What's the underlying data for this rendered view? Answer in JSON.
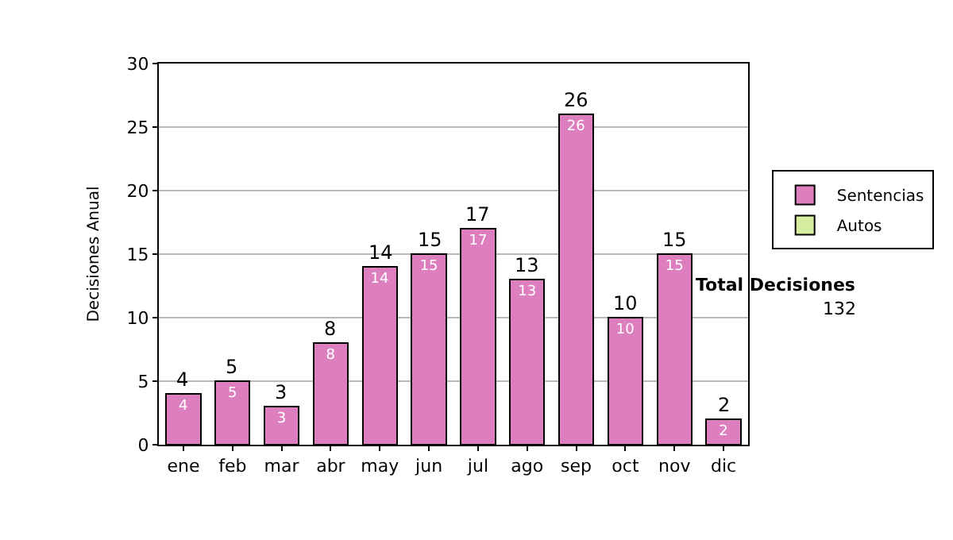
{
  "chart_data": {
    "type": "bar",
    "ylabel": "Decisiones Anual",
    "categories": [
      "ene",
      "feb",
      "mar",
      "abr",
      "may",
      "jun",
      "jul",
      "ago",
      "sep",
      "oct",
      "nov",
      "dic"
    ],
    "stacked": true,
    "series": [
      {
        "name": "Sentencias",
        "color": "#dd7fbf",
        "values": [
          4,
          5,
          3,
          8,
          14,
          15,
          17,
          13,
          26,
          10,
          15,
          2
        ],
        "value_labels": [
          "4",
          "5",
          "3",
          "8",
          "14",
          "15",
          "17",
          "13",
          "26",
          "10",
          "15",
          "2"
        ]
      },
      {
        "name": "Autos",
        "color": "#d6ec9f",
        "values": [
          null,
          null,
          null,
          null,
          null,
          null,
          null,
          null,
          null,
          null,
          null,
          null
        ]
      }
    ],
    "totals": [
      "4",
      "5",
      "3",
      "8",
      "14",
      "15",
      "17",
      "13",
      "26",
      "10",
      "15",
      "2"
    ],
    "ylim": [
      0,
      30
    ],
    "yticks": [
      0,
      5,
      10,
      15,
      20,
      25,
      30
    ],
    "grid": "y",
    "legend": "right",
    "annotations": [
      "Total Decisiones",
      "132"
    ]
  }
}
